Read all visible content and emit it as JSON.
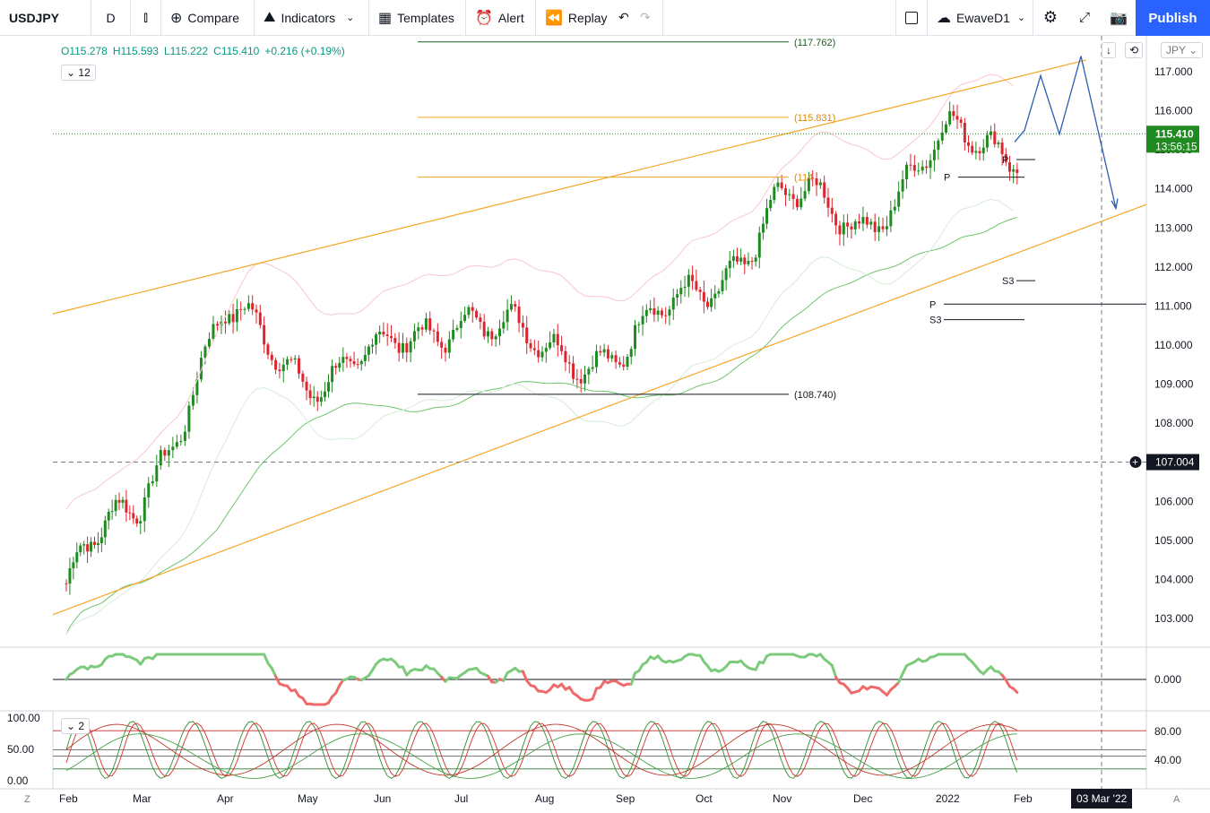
{
  "toolbar": {
    "symbol": "USDJPY",
    "interval": "D",
    "compare": "Compare",
    "indicators": "Indicators",
    "templates": "Templates",
    "alert": "Alert",
    "replay": "Replay",
    "layout_name": "EwaveD1",
    "publish": "Publish"
  },
  "legend": {
    "open": "O115.278",
    "high": "H115.593",
    "low": "L115.222",
    "close": "C115.410",
    "change": "+0.216 (+0.19%)",
    "collapsed_count": "12"
  },
  "currency_badge": "JPY",
  "price_axis": {
    "labels": [
      "117.000",
      "116.000",
      "115.000",
      "114.000",
      "113.000",
      "112.000",
      "111.000",
      "110.000",
      "109.000",
      "108.000",
      "107.000",
      "106.000",
      "105.000",
      "104.000",
      "103.000"
    ],
    "last_price": "115.410",
    "countdown": "13:56:15",
    "crosshair_price": "107.004"
  },
  "time_axis": {
    "labels": [
      "Feb",
      "Mar",
      "Apr",
      "May",
      "Jun",
      "Jul",
      "Aug",
      "Sep",
      "Oct",
      "Nov",
      "Dec",
      "2022",
      "Feb"
    ],
    "crosshair_date": "03 Mar '22",
    "left_btn": "Z",
    "right_btn": "A"
  },
  "annotations": {
    "level_top": "(117.762)",
    "level_mid": "(115.831)",
    "level_low": "(114",
    "level_bottom": "(108.740)",
    "pivot_labels": [
      "P",
      "P",
      "S3",
      "P",
      "S3"
    ]
  },
  "osc1": {
    "zero_label": "0.000"
  },
  "osc2": {
    "collapsed_count": "2",
    "left_labels": [
      "100.00",
      "50.00",
      "0.00"
    ],
    "right_labels": [
      "80.00",
      "40.00"
    ]
  },
  "colors": {
    "up": "#1f8a1f",
    "down": "#e0242f",
    "channel": "#f5a623",
    "accent": "#2962ff",
    "last_price_bg": "#1f8a1f"
  },
  "chart_data": {
    "type": "candlestick",
    "symbol": "USDJPY",
    "ylim": [
      102.5,
      118.0
    ],
    "months": [
      "Feb",
      "Mar",
      "Apr",
      "May",
      "Jun",
      "Jul",
      "Aug",
      "Sep",
      "Oct",
      "Nov",
      "Dec",
      "2022",
      "Feb"
    ],
    "monthly_close": [
      106.1,
      110.7,
      109.3,
      109.6,
      111.0,
      109.7,
      110.0,
      111.3,
      113.7,
      113.2,
      115.1,
      115.2,
      115.4
    ],
    "last": {
      "open": 115.278,
      "high": 115.593,
      "low": 115.222,
      "close": 115.41
    },
    "channel": {
      "upper": [
        [
          0,
          110.8
        ],
        [
          12.6,
          117.3
        ]
      ],
      "lower": [
        [
          0,
          103.1
        ],
        [
          12.6,
          113.6
        ]
      ]
    }
  }
}
